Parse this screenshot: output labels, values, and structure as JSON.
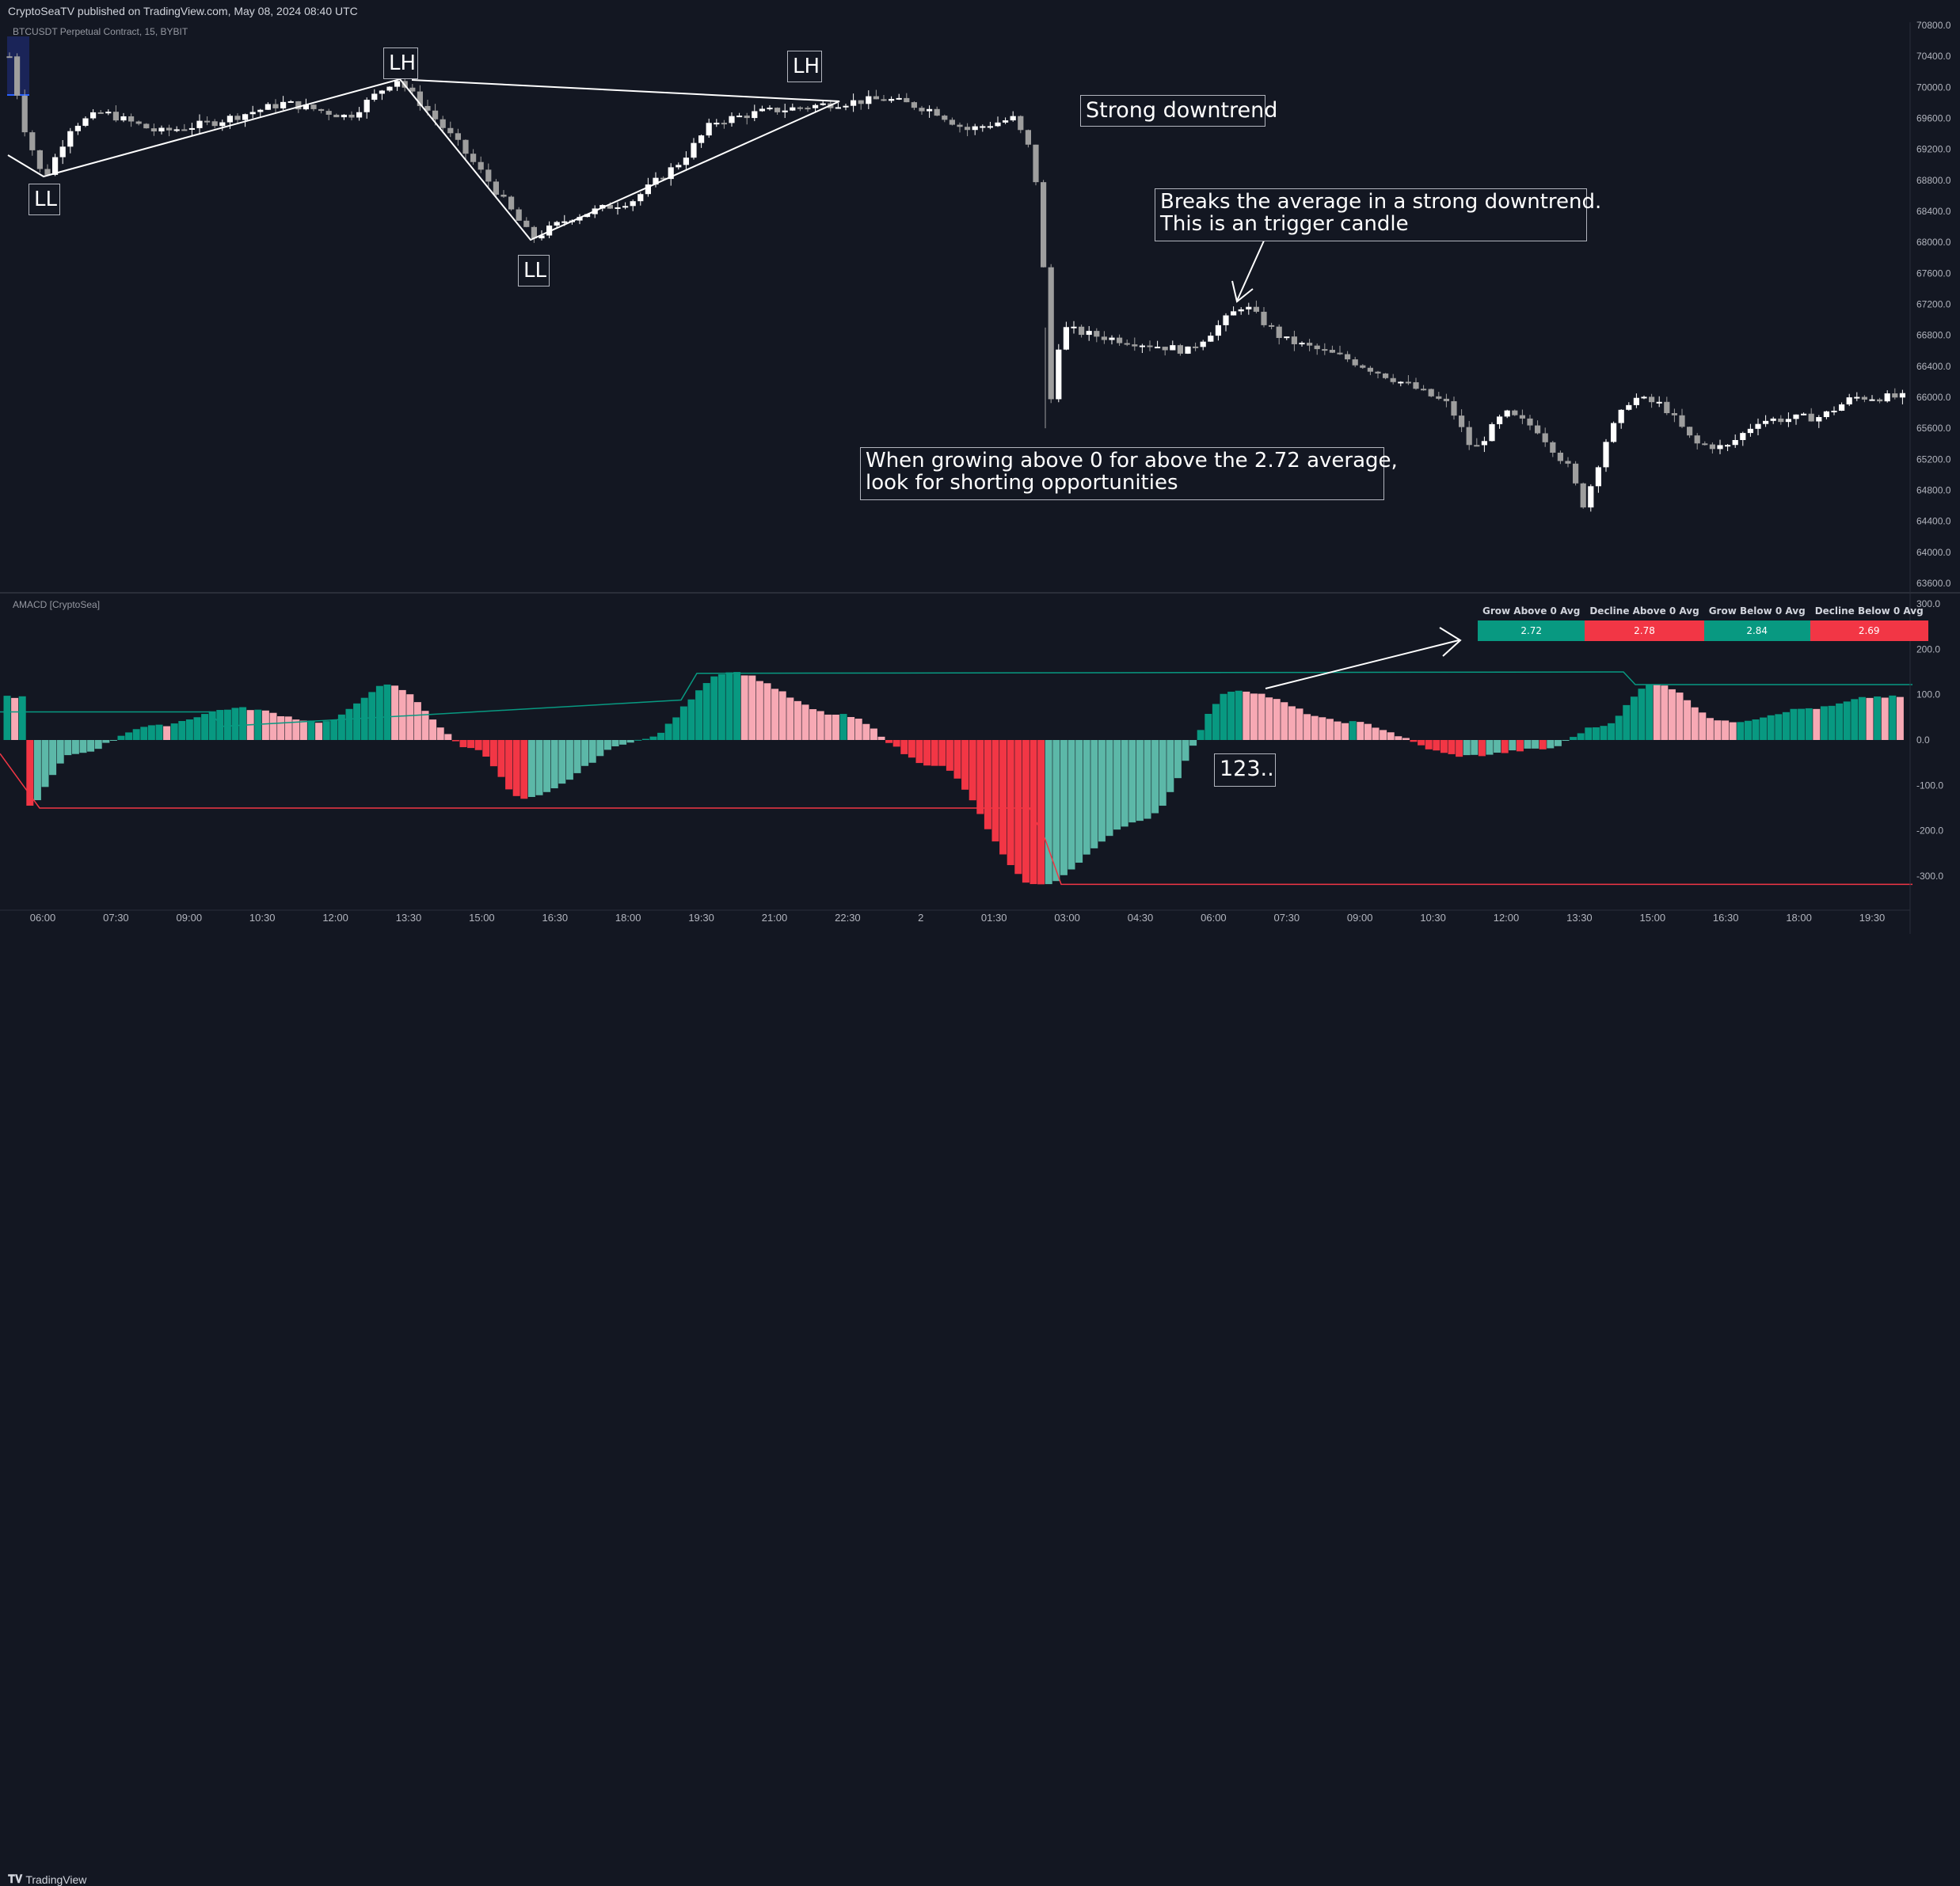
{
  "header": {
    "publisher": "CryptoSeaTV published on TradingView.com, May 08, 2024 08:40 UTC"
  },
  "symbol": "BTCUSDT Perpetual Contract, 15, BYBIT",
  "indicator_name": "AMACD [CryptoSea]",
  "branding": {
    "logo_text": "TradingView"
  },
  "colors": {
    "background": "#131722",
    "candle_up": "#ffffff",
    "candle_down": "#9e9e9e",
    "hist_grow_above": "#089981",
    "hist_decline_above": "#f7a9b4",
    "hist_grow_below": "#5cb8a8",
    "hist_decline_below": "#f23645",
    "avg_above_line": "#089981",
    "avg_below_line": "#f23645",
    "annotation_line": "#ffffff"
  },
  "annotations": {
    "ll_1": "LL",
    "lh_1": "LH",
    "ll_2": "LL",
    "lh_2": "LH",
    "strong_downtrend": "Strong downtrend",
    "trigger": "Breaks the average in a strong downtrend.\nThis is an trigger candle",
    "shorting": "When growing above 0 for above the 2.72 average,\nlook for shorting opportunities",
    "count": "123.."
  },
  "stats_table": {
    "headers": [
      "Grow Above 0 Avg",
      "Decline Above 0 Avg",
      "Grow Below 0 Avg",
      "Decline Below 0 Avg"
    ],
    "values": [
      "2.72",
      "2.78",
      "2.84",
      "2.69"
    ],
    "colors": [
      "#089981",
      "#f23645",
      "#089981",
      "#f23645"
    ]
  },
  "chart_data": [
    {
      "type": "candlestick",
      "title": "BTCUSDT Perpetual Contract, 15, BYBIT",
      "y_ticks": [
        "70800.0",
        "70400.0",
        "70000.0",
        "69600.0",
        "69200.0",
        "68800.0",
        "68400.0",
        "68000.0",
        "67600.0",
        "67200.0",
        "66800.0",
        "66400.0",
        "66000.0",
        "65600.0",
        "65200.0",
        "64800.0",
        "64400.0",
        "64000.0",
        "63600.0"
      ],
      "ylim": [
        63500,
        70850
      ],
      "x_ticks": [
        "06:00",
        "07:30",
        "09:00",
        "10:30",
        "12:00",
        "13:30",
        "15:00",
        "16:30",
        "18:00",
        "19:30",
        "21:00",
        "22:30",
        "2",
        "01:30",
        "03:00",
        "04:30",
        "06:00",
        "07:30",
        "09:00",
        "10:30",
        "12:00",
        "13:30",
        "15:00",
        "16:30",
        "18:00",
        "19:30"
      ],
      "key_prices": {
        "ll_1": 68800,
        "lh_1": 70120,
        "ll_2": 68050,
        "lh_2": 69800,
        "start_open": 70400,
        "crash_low": 65600,
        "settle_after_crash": 66800,
        "trigger_high": 67200,
        "later_low": 64600,
        "end_close": 66000
      }
    },
    {
      "type": "bar",
      "title": "AMACD [CryptoSea]",
      "y_ticks": [
        "300.0",
        "200.0",
        "100.0",
        "0.0",
        "-100.0",
        "-200.0",
        "-300.0"
      ],
      "ylim": [
        -320,
        300
      ],
      "hist_shape": [
        {
          "center": 30,
          "peak": -150
        },
        {
          "center": 95,
          "peak": -30
        },
        {
          "center": 190,
          "peak": 30
        },
        {
          "center": 300,
          "peak": 70
        },
        {
          "center": 410,
          "peak": 40
        },
        {
          "center": 490,
          "peak": 120
        },
        {
          "center": 600,
          "peak": -20
        },
        {
          "center": 660,
          "peak": -130
        },
        {
          "center": 810,
          "peak": 0
        },
        {
          "center": 920,
          "peak": 150
        },
        {
          "center": 1060,
          "peak": 55
        },
        {
          "center": 1180,
          "peak": -55
        },
        {
          "center": 1310,
          "peak": -320
        },
        {
          "center": 1440,
          "peak": -180
        },
        {
          "center": 1560,
          "peak": 110
        },
        {
          "center": 1700,
          "peak": 40
        },
        {
          "center": 1850,
          "peak": -35
        },
        {
          "center": 1950,
          "peak": -20
        },
        {
          "center": 2020,
          "peak": 30
        },
        {
          "center": 2090,
          "peak": 125
        },
        {
          "center": 2180,
          "peak": 40
        },
        {
          "center": 2290,
          "peak": 70
        },
        {
          "center": 2370,
          "peak": 95
        }
      ],
      "avg_above_line": [
        {
          "x": 0,
          "y": 62
        },
        {
          "x": 265,
          "y": 62
        },
        {
          "x": 280,
          "y": 30
        },
        {
          "x": 860,
          "y": 88
        },
        {
          "x": 880,
          "y": 147
        },
        {
          "x": 2050,
          "y": 150
        },
        {
          "x": 2065,
          "y": 122
        },
        {
          "x": 2415,
          "y": 122
        }
      ],
      "avg_below_line": [
        {
          "x": 0,
          "y": -30
        },
        {
          "x": 50,
          "y": -150
        },
        {
          "x": 1300,
          "y": -150
        },
        {
          "x": 1320,
          "y": -220
        },
        {
          "x": 1340,
          "y": -318
        },
        {
          "x": 2415,
          "y": -318
        }
      ]
    }
  ]
}
